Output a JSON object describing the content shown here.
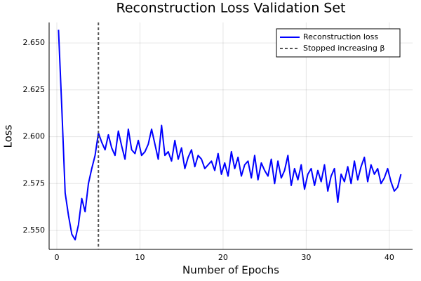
{
  "chart_data": {
    "type": "line",
    "title": "Reconstruction Loss Validation Set",
    "x_label": "Number of Epochs",
    "y_label": "Loss",
    "x": [
      0.2,
      0.6,
      1.0,
      1.4,
      1.8,
      2.2,
      2.6,
      3.0,
      3.4,
      3.8,
      4.2,
      4.6,
      5.0,
      5.4,
      5.8,
      6.2,
      6.6,
      7.0,
      7.4,
      7.8,
      8.2,
      8.6,
      9.0,
      9.4,
      9.8,
      10.2,
      10.6,
      11.0,
      11.4,
      11.8,
      12.2,
      12.6,
      13.0,
      13.4,
      13.8,
      14.2,
      14.6,
      15.0,
      15.4,
      15.8,
      16.2,
      16.6,
      17.0,
      17.4,
      17.8,
      18.2,
      18.6,
      19.0,
      19.4,
      19.8,
      20.2,
      20.6,
      21.0,
      21.4,
      21.8,
      22.2,
      22.6,
      23.0,
      23.4,
      23.8,
      24.2,
      24.6,
      25.0,
      25.4,
      25.8,
      26.2,
      26.6,
      27.0,
      27.4,
      27.8,
      28.2,
      28.6,
      29.0,
      29.4,
      29.8,
      30.2,
      30.6,
      31.0,
      31.4,
      31.8,
      32.2,
      32.6,
      33.0,
      33.4,
      33.8,
      34.2,
      34.6,
      35.0,
      35.4,
      35.8,
      36.2,
      36.6,
      37.0,
      37.4,
      37.8,
      38.2,
      38.6,
      39.0,
      39.4,
      39.8,
      40.2,
      40.6,
      41.0,
      41.4
    ],
    "series": [
      {
        "name": "Reconstruction loss",
        "color": "#0000ff",
        "values": [
          2.657,
          2.615,
          2.57,
          2.558,
          2.548,
          2.545,
          2.553,
          2.567,
          2.56,
          2.575,
          2.583,
          2.59,
          2.602,
          2.597,
          2.593,
          2.601,
          2.594,
          2.59,
          2.603,
          2.595,
          2.588,
          2.604,
          2.593,
          2.591,
          2.598,
          2.59,
          2.592,
          2.596,
          2.604,
          2.596,
          2.588,
          2.606,
          2.59,
          2.592,
          2.587,
          2.598,
          2.588,
          2.594,
          2.583,
          2.589,
          2.593,
          2.584,
          2.59,
          2.588,
          2.583,
          2.585,
          2.587,
          2.582,
          2.591,
          2.58,
          2.586,
          2.579,
          2.592,
          2.583,
          2.589,
          2.579,
          2.585,
          2.587,
          2.578,
          2.59,
          2.577,
          2.586,
          2.582,
          2.579,
          2.588,
          2.575,
          2.587,
          2.578,
          2.582,
          2.59,
          2.574,
          2.583,
          2.577,
          2.585,
          2.572,
          2.58,
          2.583,
          2.574,
          2.582,
          2.576,
          2.585,
          2.571,
          2.579,
          2.583,
          2.565,
          2.58,
          2.576,
          2.584,
          2.575,
          2.587,
          2.577,
          2.584,
          2.589,
          2.576,
          2.585,
          2.58,
          2.583,
          2.575,
          2.578,
          2.583,
          2.576,
          2.571,
          2.573,
          2.58
        ]
      }
    ],
    "vlines": [
      {
        "name": "Stopped increasing β",
        "x": 5,
        "color": "#555555",
        "dashed": true
      }
    ],
    "xlim": [
      -0.93,
      42.8
    ],
    "ylim": [
      2.5399,
      2.6609
    ],
    "xticks": [
      0,
      10,
      20,
      30,
      40
    ],
    "yticks": [
      {
        "value": 2.55,
        "label": "2.550"
      },
      {
        "value": 2.575,
        "label": "2.575"
      },
      {
        "value": 2.6,
        "label": "2.600"
      },
      {
        "value": 2.625,
        "label": "2.625"
      },
      {
        "value": 2.65,
        "label": "2.650"
      }
    ],
    "grid": true,
    "legend": "top-right"
  }
}
